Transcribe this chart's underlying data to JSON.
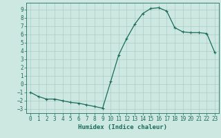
{
  "x": [
    0,
    1,
    2,
    3,
    4,
    5,
    6,
    7,
    8,
    9,
    10,
    11,
    12,
    13,
    14,
    15,
    16,
    17,
    18,
    19,
    20,
    21,
    22,
    23
  ],
  "y": [
    -1,
    -1.5,
    -1.8,
    -1.8,
    -2.0,
    -2.2,
    -2.3,
    -2.5,
    -2.7,
    -2.9,
    0.3,
    3.5,
    5.5,
    7.2,
    8.5,
    9.1,
    9.2,
    8.8,
    6.8,
    6.3,
    6.2,
    6.2,
    6.1,
    3.8
  ],
  "line_color": "#1a6b5a",
  "bg_color": "#cce8e0",
  "grid_color": "#aaccC4",
  "xlabel": "Humidex (Indice chaleur)",
  "xlim": [
    -0.5,
    23.5
  ],
  "ylim": [
    -3.5,
    9.8
  ],
  "yticks": [
    -3,
    -2,
    -1,
    0,
    1,
    2,
    3,
    4,
    5,
    6,
    7,
    8,
    9
  ],
  "xticks": [
    0,
    1,
    2,
    3,
    4,
    5,
    6,
    7,
    8,
    9,
    10,
    11,
    12,
    13,
    14,
    15,
    16,
    17,
    18,
    19,
    20,
    21,
    22,
    23
  ],
  "tick_color": "#1a6b5a",
  "xlabel_fontsize": 6.5,
  "tick_fontsize": 5.5,
  "marker": "+",
  "markersize": 3.5,
  "linewidth": 0.9
}
